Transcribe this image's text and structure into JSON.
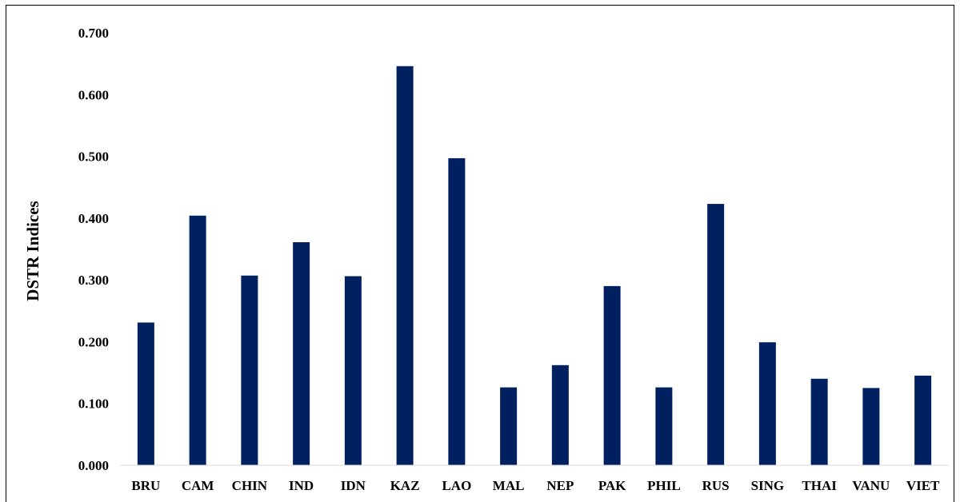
{
  "chart_data": {
    "type": "bar",
    "title": "",
    "xlabel": "",
    "ylabel": "DSTR Indices",
    "ylim": [
      0,
      0.7
    ],
    "yticks": [
      "0.000",
      "0.100",
      "0.200",
      "0.300",
      "0.400",
      "0.500",
      "0.600",
      "0.700"
    ],
    "grid": false,
    "bar_color": "#002060",
    "categories": [
      "BRU",
      "CAM",
      "CHIN",
      "IND",
      "IDN",
      "KAZ",
      "LAO",
      "MAL",
      "NEP",
      "PAK",
      "PHIL",
      "RUS",
      "SING",
      "THAI",
      "VANU",
      "VIET"
    ],
    "values": [
      0.231,
      0.404,
      0.307,
      0.361,
      0.306,
      0.646,
      0.497,
      0.126,
      0.162,
      0.29,
      0.126,
      0.423,
      0.199,
      0.14,
      0.125,
      0.145
    ]
  }
}
